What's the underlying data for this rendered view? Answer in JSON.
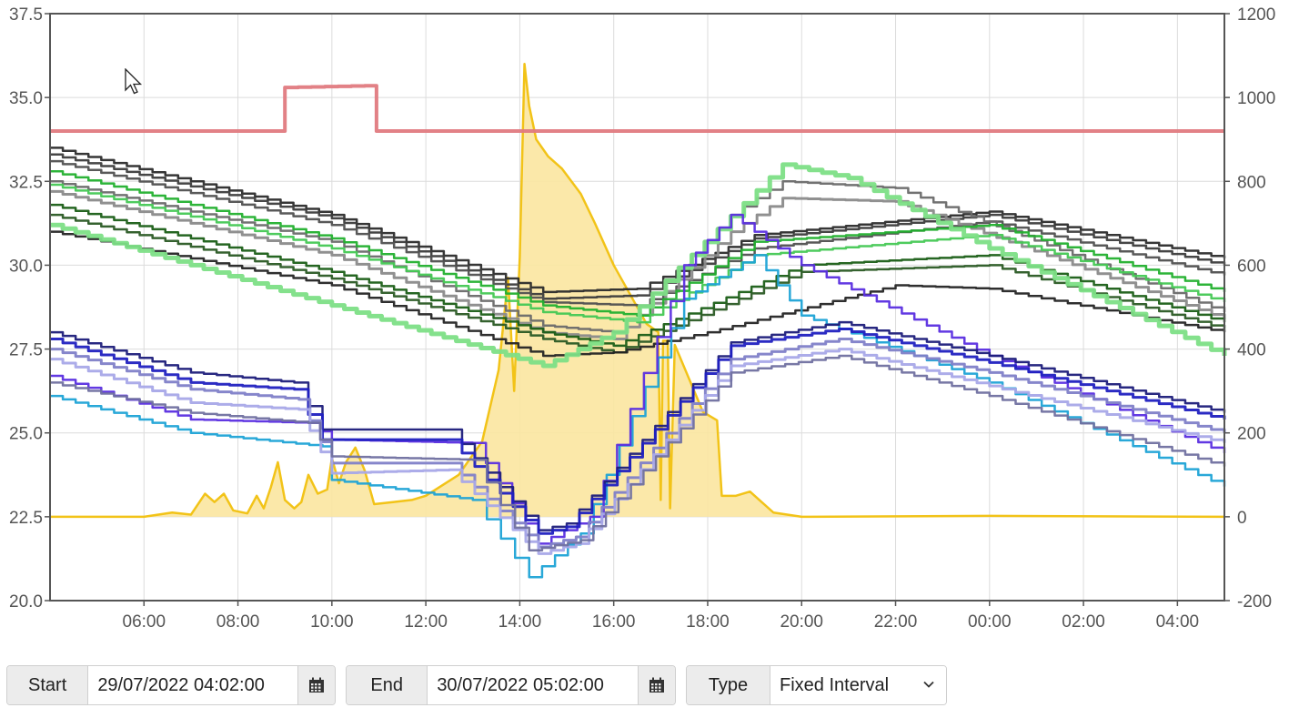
{
  "chart_data": {
    "type": "line",
    "x_axis": {
      "range": [
        "2022-07-29 04:02",
        "2022-07-30 05:02"
      ],
      "tick_labels": [
        "06:00",
        "08:00",
        "10:00",
        "12:00",
        "14:00",
        "16:00",
        "18:00",
        "20:00",
        "22:00",
        "00:00",
        "02:00",
        "04:00"
      ]
    },
    "y_left": {
      "range": [
        20.0,
        37.5
      ],
      "tick_labels": [
        "20.0",
        "22.5",
        "25.0",
        "27.5",
        "30.0",
        "32.5",
        "35.0",
        "37.5"
      ]
    },
    "y_right": {
      "range": [
        -200,
        1200
      ],
      "tick_labels": [
        "-200",
        "0",
        "200",
        "400",
        "600",
        "800",
        "1000",
        "1200"
      ]
    },
    "grid": true,
    "legend": "none",
    "area_series": {
      "axis": "right",
      "color": "#f2c318",
      "fill": "#fbe6a0",
      "points": [
        [
          0,
          0
        ],
        [
          2,
          0
        ],
        [
          2.6,
          10
        ],
        [
          3.0,
          5
        ],
        [
          3.3,
          55
        ],
        [
          3.5,
          35
        ],
        [
          3.7,
          55
        ],
        [
          3.9,
          15
        ],
        [
          4.2,
          8
        ],
        [
          4.4,
          50
        ],
        [
          4.55,
          20
        ],
        [
          4.7,
          70
        ],
        [
          4.85,
          130
        ],
        [
          5.0,
          40
        ],
        [
          5.2,
          20
        ],
        [
          5.35,
          35
        ],
        [
          5.5,
          100
        ],
        [
          5.7,
          55
        ],
        [
          5.9,
          65
        ],
        [
          6.0,
          140
        ],
        [
          6.15,
          80
        ],
        [
          6.3,
          130
        ],
        [
          6.5,
          165
        ],
        [
          6.7,
          110
        ],
        [
          6.9,
          30
        ],
        [
          7.3,
          35
        ],
        [
          7.7,
          40
        ],
        [
          8.0,
          50
        ],
        [
          8.7,
          100
        ],
        [
          9.2,
          180
        ],
        [
          9.55,
          350
        ],
        [
          9.75,
          570
        ],
        [
          9.88,
          300
        ],
        [
          10.0,
          620
        ],
        [
          10.1,
          1080
        ],
        [
          10.2,
          980
        ],
        [
          10.35,
          900
        ],
        [
          10.6,
          860
        ],
        [
          10.9,
          830
        ],
        [
          11.3,
          770
        ],
        [
          11.6,
          700
        ],
        [
          12.0,
          600
        ],
        [
          12.3,
          540
        ],
        [
          12.7,
          460
        ],
        [
          12.95,
          440
        ],
        [
          13.0,
          40
        ],
        [
          13.05,
          420
        ],
        [
          13.15,
          420
        ],
        [
          13.2,
          20
        ],
        [
          13.3,
          410
        ],
        [
          13.6,
          330
        ],
        [
          13.9,
          250
        ],
        [
          14.2,
          230
        ],
        [
          14.3,
          50
        ],
        [
          14.6,
          50
        ],
        [
          14.9,
          60
        ],
        [
          15.1,
          40
        ],
        [
          15.4,
          10
        ],
        [
          16,
          0
        ],
        [
          20,
          2
        ],
        [
          25,
          0
        ]
      ]
    },
    "series": [
      {
        "color": "#e07a80",
        "width": 4,
        "points": [
          [
            0,
            34.0
          ],
          [
            4.7,
            34.0
          ],
          [
            5.0,
            35.3
          ],
          [
            6.7,
            35.35
          ],
          [
            6.95,
            34.0
          ],
          [
            25,
            34.0
          ]
        ]
      },
      {
        "color": "#2b2b2b",
        "width": 2.5,
        "points": [
          [
            0,
            33.5
          ],
          [
            6,
            31.5
          ],
          [
            10.5,
            29.2
          ],
          [
            12.5,
            29.3
          ],
          [
            15,
            30.9
          ],
          [
            20,
            31.6
          ],
          [
            25,
            30.2
          ]
        ]
      },
      {
        "color": "#3c3c3c",
        "width": 2.5,
        "points": [
          [
            0,
            33.3
          ],
          [
            6,
            31.4
          ],
          [
            10.5,
            29.0
          ],
          [
            12.5,
            29.1
          ],
          [
            15,
            30.8
          ],
          [
            20,
            31.5
          ],
          [
            25,
            30.0
          ]
        ]
      },
      {
        "color": "#505050",
        "width": 2.5,
        "points": [
          [
            0,
            33.1
          ],
          [
            6,
            31.2
          ],
          [
            10.5,
            28.9
          ],
          [
            12.5,
            28.8
          ],
          [
            15,
            30.5
          ],
          [
            20,
            31.3
          ],
          [
            25,
            29.7
          ]
        ]
      },
      {
        "color": "#6a6a6a",
        "width": 2.5,
        "points": [
          [
            0,
            32.5
          ],
          [
            6,
            30.7
          ],
          [
            10.5,
            28.2
          ],
          [
            12.0,
            28.0
          ],
          [
            14.5,
            31.5
          ],
          [
            15.6,
            32.5
          ],
          [
            18,
            32.3
          ],
          [
            25,
            28.6
          ]
        ]
      },
      {
        "color": "#8a8a8a",
        "width": 3,
        "points": [
          [
            0,
            32.2
          ],
          [
            6,
            30.3
          ],
          [
            10.5,
            28.0
          ],
          [
            12.0,
            27.8
          ],
          [
            14.5,
            31.0
          ],
          [
            15.6,
            32.0
          ],
          [
            18,
            31.9
          ],
          [
            25,
            28.4
          ]
        ]
      },
      {
        "color": "#22b02e",
        "width": 2.5,
        "points": [
          [
            0,
            32.8
          ],
          [
            6,
            30.8
          ],
          [
            10.5,
            28.8
          ],
          [
            12.5,
            28.5
          ],
          [
            15,
            30.7
          ],
          [
            20,
            31.2
          ],
          [
            25,
            29.2
          ]
        ]
      },
      {
        "color": "#44c854",
        "width": 2.5,
        "points": [
          [
            0,
            32.4
          ],
          [
            6,
            30.5
          ],
          [
            10.5,
            28.6
          ],
          [
            12.5,
            28.3
          ],
          [
            15,
            30.3
          ],
          [
            20,
            30.9
          ],
          [
            25,
            28.9
          ]
        ]
      },
      {
        "color": "#1a5e16",
        "width": 2.5,
        "points": [
          [
            0,
            31.8
          ],
          [
            6,
            29.8
          ],
          [
            10.5,
            28.0
          ],
          [
            12.0,
            27.6
          ],
          [
            16,
            30.0
          ],
          [
            20,
            30.3
          ],
          [
            25,
            28.3
          ]
        ]
      },
      {
        "color": "#2a5a24",
        "width": 2.5,
        "points": [
          [
            0,
            31.5
          ],
          [
            6,
            29.6
          ],
          [
            10.5,
            27.8
          ],
          [
            12.0,
            27.4
          ],
          [
            16,
            29.8
          ],
          [
            20,
            30.0
          ],
          [
            25,
            28.1
          ]
        ]
      },
      {
        "color": "#242424",
        "width": 2.5,
        "points": [
          [
            0,
            31.0
          ],
          [
            6,
            29.4
          ],
          [
            10.5,
            27.3
          ],
          [
            12.0,
            27.4
          ],
          [
            14,
            28.0
          ],
          [
            18,
            29.4
          ],
          [
            20,
            29.3
          ],
          [
            25,
            28.0
          ]
        ]
      },
      {
        "color": "#7ddf86",
        "width": 5,
        "points": [
          [
            0,
            31.2
          ],
          [
            6,
            28.8
          ],
          [
            10.5,
            27.0
          ],
          [
            12,
            28.0
          ],
          [
            15.6,
            33.0
          ],
          [
            17,
            32.6
          ],
          [
            20,
            30.5
          ],
          [
            25,
            27.3
          ]
        ]
      },
      {
        "color": "#1ea3d6",
        "width": 2.5,
        "points": [
          [
            0,
            26.1
          ],
          [
            3,
            25.0
          ],
          [
            5.8,
            24.6
          ],
          [
            6.0,
            23.6
          ],
          [
            9,
            23.0
          ],
          [
            10.2,
            20.7
          ],
          [
            11.3,
            22.0
          ],
          [
            13.5,
            29.0
          ],
          [
            15,
            30.3
          ],
          [
            16,
            28.5
          ],
          [
            20,
            26.5
          ],
          [
            25,
            23.4
          ]
        ]
      },
      {
        "color": "#5a2ee0",
        "width": 2.5,
        "points": [
          [
            0,
            26.7
          ],
          [
            3,
            25.4
          ],
          [
            5.5,
            25.3
          ],
          [
            6.0,
            24.8
          ],
          [
            9,
            24.7
          ],
          [
            10.4,
            21.7
          ],
          [
            11.5,
            22.5
          ],
          [
            13.5,
            30.0
          ],
          [
            14.5,
            31.5
          ],
          [
            16,
            30.0
          ],
          [
            20,
            27.3
          ],
          [
            25,
            24.4
          ]
        ]
      },
      {
        "color": "#1c1c7a",
        "width": 2.5,
        "points": [
          [
            0,
            28.0
          ],
          [
            3,
            26.8
          ],
          [
            5.2,
            26.5
          ],
          [
            5.8,
            25.1
          ],
          [
            8.5,
            25.1
          ],
          [
            10.4,
            22.1
          ],
          [
            11.0,
            22.3
          ],
          [
            14.5,
            27.7
          ],
          [
            16.8,
            28.3
          ],
          [
            20,
            27.3
          ],
          [
            25,
            25.6
          ]
        ]
      },
      {
        "color": "#2020c0",
        "width": 3,
        "points": [
          [
            0,
            27.8
          ],
          [
            3,
            26.5
          ],
          [
            5.2,
            26.3
          ],
          [
            5.8,
            24.8
          ],
          [
            8.5,
            24.8
          ],
          [
            10.4,
            22.0
          ],
          [
            11.0,
            22.2
          ],
          [
            14.5,
            27.6
          ],
          [
            16.8,
            28.1
          ],
          [
            20,
            27.1
          ],
          [
            25,
            25.4
          ]
        ]
      },
      {
        "color": "#8080c8",
        "width": 3,
        "points": [
          [
            0,
            27.5
          ],
          [
            3,
            26.3
          ],
          [
            5.3,
            26.0
          ],
          [
            6.0,
            24.1
          ],
          [
            8.5,
            24.1
          ],
          [
            10.4,
            21.6
          ],
          [
            11.2,
            21.9
          ],
          [
            14.5,
            27.2
          ],
          [
            16.8,
            27.8
          ],
          [
            20,
            26.8
          ],
          [
            25,
            25.0
          ]
        ]
      },
      {
        "color": "#a8a8e8",
        "width": 3,
        "points": [
          [
            0,
            27.2
          ],
          [
            3,
            25.9
          ],
          [
            5.3,
            25.7
          ],
          [
            6.0,
            23.8
          ],
          [
            8.5,
            23.9
          ],
          [
            10.4,
            21.4
          ],
          [
            11.2,
            21.7
          ],
          [
            14.5,
            27.0
          ],
          [
            16.8,
            27.5
          ],
          [
            20,
            26.4
          ],
          [
            25,
            24.7
          ]
        ]
      },
      {
        "color": "#7070a0",
        "width": 2.5,
        "points": [
          [
            0,
            26.5
          ],
          [
            3,
            25.6
          ],
          [
            5.5,
            25.3
          ],
          [
            6.0,
            24.3
          ],
          [
            9,
            24.2
          ],
          [
            10.2,
            21.5
          ],
          [
            11.3,
            21.8
          ],
          [
            14.5,
            26.8
          ],
          [
            16.8,
            27.3
          ],
          [
            20,
            26.1
          ],
          [
            25,
            24.0
          ]
        ]
      }
    ]
  },
  "controls": {
    "start_label": "Start",
    "start_value": "29/07/2022 04:02:00",
    "end_label": "End",
    "end_value": "30/07/2022 05:02:00",
    "type_label": "Type",
    "type_value": "Fixed Interval"
  }
}
